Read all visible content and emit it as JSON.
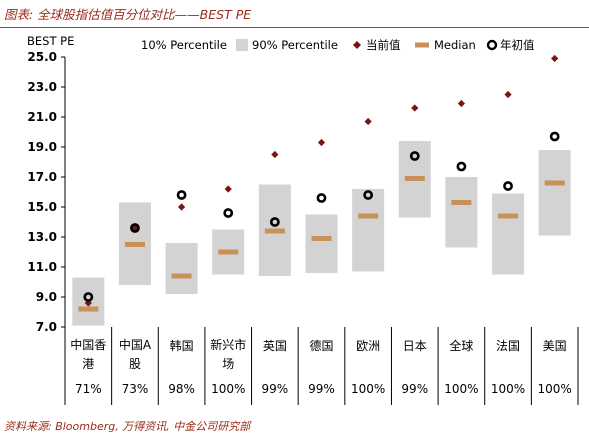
{
  "header": {
    "title": "图表: 全球股指估值百分位对比——BEST PE"
  },
  "footer": {
    "source": "资料来源: Bloomberg, 万得资讯, 中金公司研究部"
  },
  "chart_data": {
    "type": "box",
    "ylabel": "BEST PE",
    "ylim": [
      7.0,
      25.0
    ],
    "yticks": [
      "7.0",
      "9.0",
      "11.0",
      "13.0",
      "15.0",
      "17.0",
      "19.0",
      "21.0",
      "23.0",
      "25.0"
    ],
    "categories": [
      "中国香港",
      "中国A股",
      "韩国",
      "新兴市场",
      "英国",
      "德国",
      "欧洲",
      "日本",
      "全球",
      "法国",
      "美国"
    ],
    "category_lines": [
      [
        "中国香",
        "港"
      ],
      [
        "中国A",
        "股"
      ],
      [
        "韩国"
      ],
      [
        "新兴市",
        "场"
      ],
      [
        "英国"
      ],
      [
        "德国"
      ],
      [
        "欧洲"
      ],
      [
        "日本"
      ],
      [
        "全球"
      ],
      [
        "法国"
      ],
      [
        "美国"
      ]
    ],
    "percentile_labels": [
      "71%",
      "73%",
      "98%",
      "100%",
      "99%",
      "99%",
      "100%",
      "99%",
      "100%",
      "100%",
      "100%"
    ],
    "legend": {
      "p10": "10% Percentile",
      "p90": "90% Percentile",
      "current": "当前值",
      "median": "Median",
      "start": "年初值"
    },
    "series": {
      "p10": [
        7.1,
        9.8,
        9.2,
        10.5,
        10.4,
        10.6,
        10.7,
        14.3,
        12.3,
        10.5,
        13.1
      ],
      "p90": [
        10.3,
        15.3,
        12.6,
        13.5,
        16.5,
        14.5,
        16.2,
        19.4,
        17.0,
        15.9,
        18.8
      ],
      "median": [
        8.2,
        12.5,
        10.4,
        12.0,
        13.4,
        12.9,
        14.4,
        16.9,
        15.3,
        14.4,
        16.6
      ],
      "current": [
        8.6,
        13.6,
        15.0,
        16.2,
        18.5,
        19.3,
        20.7,
        21.6,
        21.9,
        22.5,
        24.9
      ],
      "start": [
        9.0,
        13.6,
        15.8,
        14.6,
        14.0,
        15.6,
        15.8,
        18.4,
        17.7,
        16.4,
        19.7
      ]
    },
    "colors": {
      "band": "#d3d3d3",
      "median": "#c8915a",
      "current": "#7a1414",
      "start": "#000000",
      "title": "#9b2a1a"
    },
    "grid": false,
    "legend_position": "top"
  }
}
